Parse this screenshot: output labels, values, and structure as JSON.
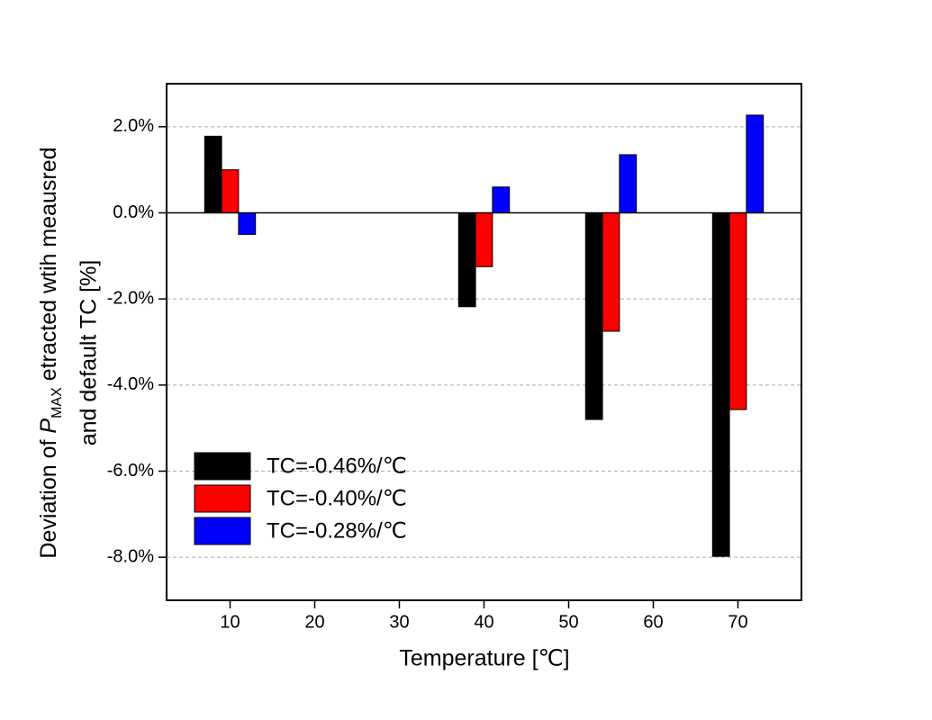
{
  "chart_data": {
    "type": "bar",
    "xlabel": "Temperature [℃]",
    "ylabel": {
      "line1": [
        "Deviation of ",
        "P",
        "MAX",
        " etracted wtih meausred"
      ],
      "line2": "and default TC  [%]"
    },
    "x": [
      10,
      40,
      55,
      70
    ],
    "series": [
      {
        "name": "TC=-0.46%/℃",
        "color": "#000000",
        "values": [
          1.78,
          -2.18,
          -4.8,
          -7.98
        ]
      },
      {
        "name": "TC=-0.40%/℃",
        "color": "#ff0000",
        "values": [
          1.0,
          -1.25,
          -2.75,
          -4.57
        ]
      },
      {
        "name": "TC=-0.28%/℃",
        "color": "#0000ff",
        "values": [
          -0.5,
          0.6,
          1.35,
          2.27
        ]
      }
    ],
    "xlim": [
      2.5,
      77.5
    ],
    "xticks": [
      10,
      20,
      30,
      40,
      50,
      60,
      70
    ],
    "ylim": [
      -9,
      3
    ],
    "yticks": [
      {
        "value": -8,
        "label": "-8.0%"
      },
      {
        "value": -6,
        "label": "-6.0%"
      },
      {
        "value": -4,
        "label": "-4.0%"
      },
      {
        "value": -2,
        "label": "-2.0%"
      },
      {
        "value": 0,
        "label": "0.0%"
      },
      {
        "value": 2,
        "label": "2.0%"
      }
    ],
    "grid": true,
    "legend": "lower left"
  }
}
